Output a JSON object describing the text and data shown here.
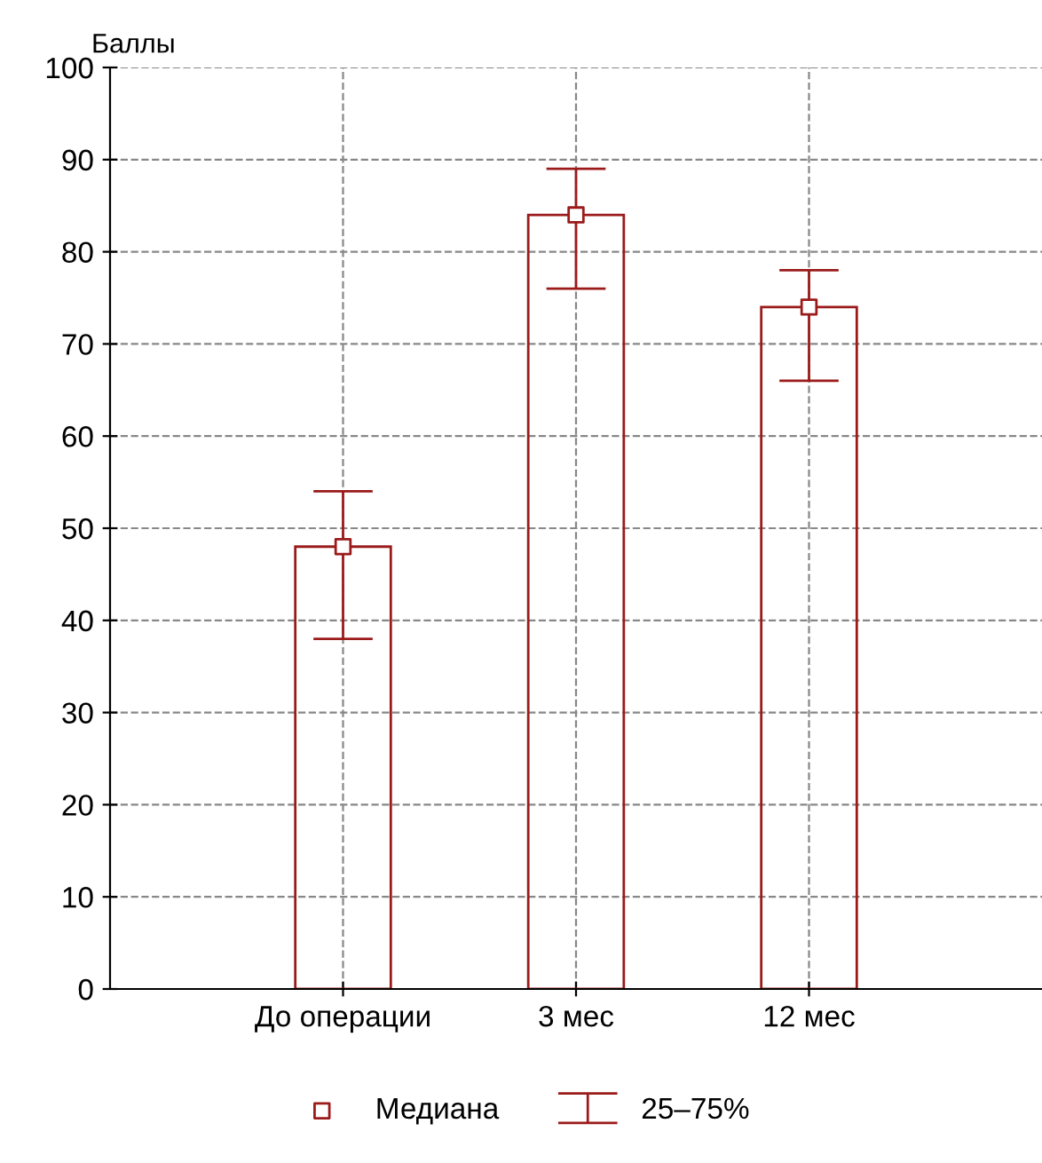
{
  "chart_data": {
    "type": "bar",
    "ylabel": "Баллы",
    "categories": [
      null,
      "До операции",
      "3 мес",
      "12 мес",
      null
    ],
    "series": [
      {
        "color": "#9b1b1b",
        "values": [
          null,
          48,
          84,
          74,
          null
        ]
      },
      {
        "type": "scatter",
        "name": "Медиана",
        "color": "#9b1b1b",
        "x": [
          "До операции",
          "3 мес",
          "12 мес"
        ],
        "values": [
          48,
          84,
          74
        ],
        "errors": [
          [
            38,
            54
          ],
          [
            76,
            89
          ],
          [
            66,
            78
          ]
        ]
      }
    ],
    "ylim": [
      0,
      100
    ],
    "yticks": [
      0,
      10,
      20,
      30,
      40,
      50,
      60,
      70,
      80,
      90,
      100
    ],
    "grid": true,
    "line_style": "dashed",
    "legend": "bottom",
    "marker": "square",
    "annotations": [
      "25–75%"
    ]
  }
}
